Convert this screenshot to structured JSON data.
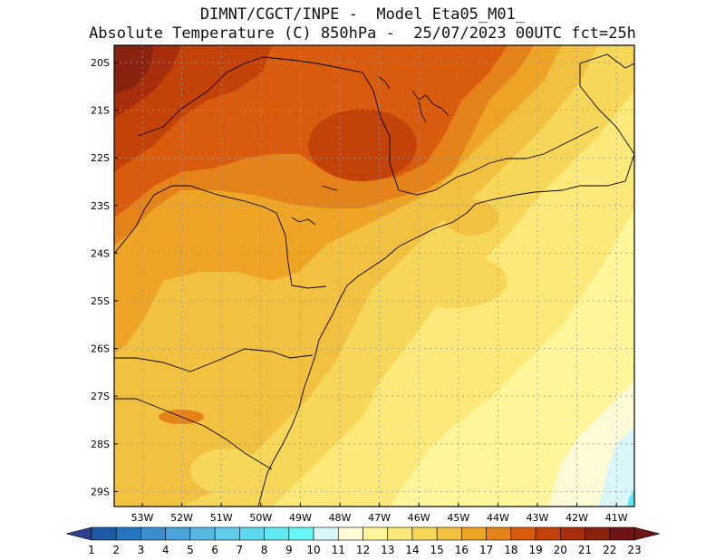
{
  "header": {
    "line1": "DIMNT/CGCT/INPE -  Model Eta05_M01_",
    "line2": "Absolute Temperature (C) 850hPa -  25/07/2023 00UTC fct=25h"
  },
  "map": {
    "lat_labels": [
      "20S",
      "21S",
      "22S",
      "23S",
      "24S",
      "25S",
      "26S",
      "27S",
      "28S",
      "29S"
    ],
    "lon_labels": [
      "53W",
      "52W",
      "51W",
      "50W",
      "49W",
      "48W",
      "47W",
      "46W",
      "45W",
      "44W",
      "43W",
      "42W",
      "41W"
    ]
  },
  "colorbar": {
    "labels": [
      "1",
      "2",
      "3",
      "4",
      "5",
      "6",
      "7",
      "8",
      "9",
      "10",
      "11",
      "12",
      "13",
      "14",
      "15",
      "16",
      "17",
      "18",
      "19",
      "20",
      "21",
      "22",
      "23"
    ],
    "colors": [
      "#2a3f8f",
      "#1c5aa6",
      "#2677bf",
      "#3a8fd0",
      "#4aa3da",
      "#58b8e4",
      "#5fcce9",
      "#5ed8ee",
      "#62e8f3",
      "#67f5f6",
      "#d9f6fb",
      "#fffad6",
      "#fff59b",
      "#fde97a",
      "#f7d75a",
      "#f2c13f",
      "#eea526",
      "#e6821a",
      "#d95c0e",
      "#c3420a",
      "#a82f0c",
      "#8a2210",
      "#6e1417"
    ],
    "low_end_color": "#2a3f8f",
    "high_end_color": "#6e1417"
  },
  "temperature_palette": {
    "c14": "#fde97a",
    "c15": "#f7d75a",
    "c16": "#f2c13f",
    "c17": "#eea526",
    "c18": "#e6821a",
    "c19": "#d95c0e",
    "c20": "#c3420a",
    "c21": "#a82f0c",
    "c22": "#8a2210",
    "c12": "#fffad6",
    "c13": "#fff59b",
    "c10": "#d9f6fb",
    "c9": "#67f5f6",
    "c8": "#62e8f3"
  }
}
